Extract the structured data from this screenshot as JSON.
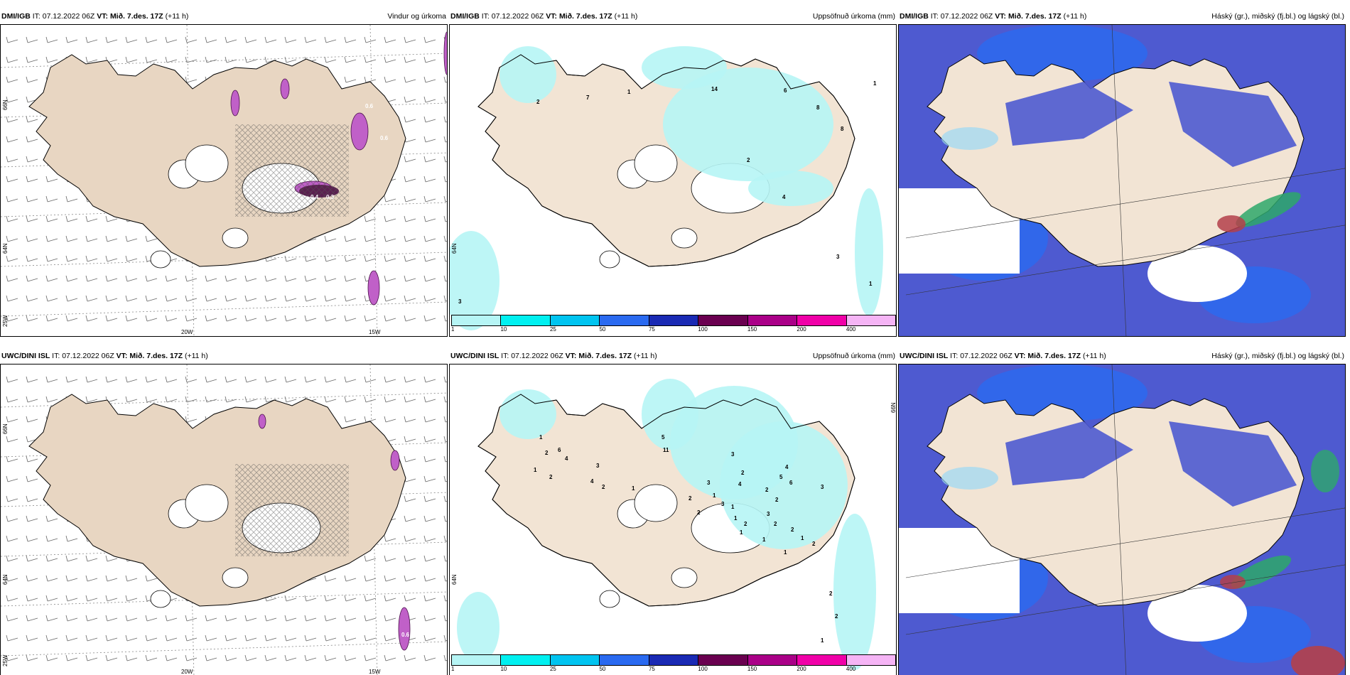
{
  "panels": [
    {
      "id": "dmi-wind",
      "model": "DMI/IGB",
      "it_label": "IT:",
      "it_value": "07.12.2022 06Z",
      "vt_label": "VT:",
      "vt_value": "Mið. 7.des. 17Z",
      "lead": "(+11 h)",
      "title_right": "Vindur og úrkoma",
      "lat_labels": [
        "66N",
        "64N",
        "25W"
      ],
      "lon_labels": [
        "20W",
        "15W"
      ],
      "precip_values": [
        "0.4",
        "0.3",
        "0.6",
        "0.6"
      ]
    },
    {
      "id": "dmi-precip",
      "model": "DMI/IGB",
      "it_label": "IT:",
      "it_value": "07.12.2022 06Z",
      "vt_label": "VT:",
      "vt_value": "Mið. 7.des. 17Z",
      "lead": "(+11 h)",
      "title_right": "Uppsöfnuð úrkoma (mm)",
      "lat_labels": [
        "64N"
      ],
      "precip_values": [
        "2",
        "7",
        "1",
        "14",
        "6",
        "8",
        "8",
        "2",
        "4",
        "1",
        "3",
        "1",
        "3"
      ]
    },
    {
      "id": "dmi-cloud",
      "model": "DMI/IGB",
      "it_label": "IT:",
      "it_value": "07.12.2022 06Z",
      "vt_label": "VT:",
      "vt_value": "Mið. 7.des. 17Z",
      "lead": "(+11 h)",
      "title_right": "Háský (gr.), miðský (fj.bl.) og lágský (bl.)"
    },
    {
      "id": "uwc-wind",
      "model": "UWC/DINI ISL",
      "it_label": "IT:",
      "it_value": "07.12.2022 06Z",
      "vt_label": "VT:",
      "vt_value": "Mið. 7.des. 17Z",
      "lead": "(+11 h)",
      "title_right": "",
      "lat_labels": [
        "66N",
        "64N",
        "25W"
      ],
      "lon_labels": [
        "20W",
        "15W"
      ],
      "precip_values": [
        "0.6"
      ]
    },
    {
      "id": "uwc-precip",
      "model": "UWC/DINI ISL",
      "it_label": "IT:",
      "it_value": "07.12.2022 06Z",
      "vt_label": "VT:",
      "vt_value": "Mið. 7.des. 17Z",
      "lead": "(+11 h)",
      "title_right": "Uppsöfnuð úrkoma (mm)",
      "lat_labels": [
        "66N",
        "64N"
      ],
      "precip_values": [
        "1",
        "2",
        "6",
        "4",
        "1",
        "2",
        "3",
        "2",
        "1",
        "4",
        "11",
        "5",
        "3",
        "2",
        "4",
        "3",
        "1",
        "2",
        "3",
        "1",
        "2",
        "1",
        "2",
        "1",
        "2",
        "6",
        "5",
        "4",
        "3",
        "2",
        "3",
        "2",
        "2",
        "1",
        "2",
        "1",
        "1",
        "1",
        "2",
        "2",
        "1"
      ]
    },
    {
      "id": "uwc-cloud",
      "model": "UWC/DINI ISL",
      "it_label": "IT:",
      "it_value": "07.12.2022 06Z",
      "vt_label": "VT:",
      "vt_value": "Mið. 7.des. 17Z",
      "lead": "(+11 h)",
      "title_right": "Háský (gr.), miðský (fj.bl.) og lágský (bl.)"
    }
  ],
  "colorbar": {
    "labels": [
      "1",
      "10",
      "25",
      "50",
      "75",
      "100",
      "150",
      "200",
      "400"
    ],
    "colors": [
      "#b6f5f5",
      "#00f0f0",
      "#00c4f0",
      "#2a6af0",
      "#1a2ab4",
      "#6a0050",
      "#aa0088",
      "#f000a8",
      "#f5b4f5"
    ]
  },
  "map_colors": {
    "land": "#f2e4d4",
    "land_wind": "#e8d6c2",
    "precip_light": "#b6f5f5",
    "cloud_low": "#4e5ad0",
    "cloud_mid": "#2a6af0",
    "cloud_light": "#9bd8f5",
    "cloud_high_green": "#2ea86a",
    "cloud_high_red": "#b4404a",
    "precip_pink": "#c060c8",
    "precip_dark": "#5a2050"
  }
}
